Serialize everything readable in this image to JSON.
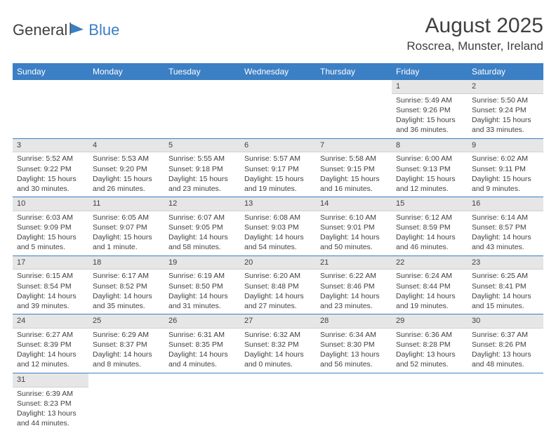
{
  "logo": {
    "text1": "General",
    "text2": "Blue"
  },
  "title": "August 2025",
  "location": "Roscrea, Munster, Ireland",
  "colors": {
    "header_bg": "#3b7fc4",
    "header_text": "#ffffff",
    "daynum_bg": "#e6e6e6",
    "row_border": "#3b7fc4",
    "body_text": "#404040",
    "logo_blue": "#3b7fc4"
  },
  "day_labels": [
    "Sunday",
    "Monday",
    "Tuesday",
    "Wednesday",
    "Thursday",
    "Friday",
    "Saturday"
  ],
  "weeks": [
    [
      null,
      null,
      null,
      null,
      null,
      {
        "d": "1",
        "sr": "5:49 AM",
        "ss": "9:26 PM",
        "dl": "15 hours and 36 minutes."
      },
      {
        "d": "2",
        "sr": "5:50 AM",
        "ss": "9:24 PM",
        "dl": "15 hours and 33 minutes."
      }
    ],
    [
      {
        "d": "3",
        "sr": "5:52 AM",
        "ss": "9:22 PM",
        "dl": "15 hours and 30 minutes."
      },
      {
        "d": "4",
        "sr": "5:53 AM",
        "ss": "9:20 PM",
        "dl": "15 hours and 26 minutes."
      },
      {
        "d": "5",
        "sr": "5:55 AM",
        "ss": "9:18 PM",
        "dl": "15 hours and 23 minutes."
      },
      {
        "d": "6",
        "sr": "5:57 AM",
        "ss": "9:17 PM",
        "dl": "15 hours and 19 minutes."
      },
      {
        "d": "7",
        "sr": "5:58 AM",
        "ss": "9:15 PM",
        "dl": "15 hours and 16 minutes."
      },
      {
        "d": "8",
        "sr": "6:00 AM",
        "ss": "9:13 PM",
        "dl": "15 hours and 12 minutes."
      },
      {
        "d": "9",
        "sr": "6:02 AM",
        "ss": "9:11 PM",
        "dl": "15 hours and 9 minutes."
      }
    ],
    [
      {
        "d": "10",
        "sr": "6:03 AM",
        "ss": "9:09 PM",
        "dl": "15 hours and 5 minutes."
      },
      {
        "d": "11",
        "sr": "6:05 AM",
        "ss": "9:07 PM",
        "dl": "15 hours and 1 minute."
      },
      {
        "d": "12",
        "sr": "6:07 AM",
        "ss": "9:05 PM",
        "dl": "14 hours and 58 minutes."
      },
      {
        "d": "13",
        "sr": "6:08 AM",
        "ss": "9:03 PM",
        "dl": "14 hours and 54 minutes."
      },
      {
        "d": "14",
        "sr": "6:10 AM",
        "ss": "9:01 PM",
        "dl": "14 hours and 50 minutes."
      },
      {
        "d": "15",
        "sr": "6:12 AM",
        "ss": "8:59 PM",
        "dl": "14 hours and 46 minutes."
      },
      {
        "d": "16",
        "sr": "6:14 AM",
        "ss": "8:57 PM",
        "dl": "14 hours and 43 minutes."
      }
    ],
    [
      {
        "d": "17",
        "sr": "6:15 AM",
        "ss": "8:54 PM",
        "dl": "14 hours and 39 minutes."
      },
      {
        "d": "18",
        "sr": "6:17 AM",
        "ss": "8:52 PM",
        "dl": "14 hours and 35 minutes."
      },
      {
        "d": "19",
        "sr": "6:19 AM",
        "ss": "8:50 PM",
        "dl": "14 hours and 31 minutes."
      },
      {
        "d": "20",
        "sr": "6:20 AM",
        "ss": "8:48 PM",
        "dl": "14 hours and 27 minutes."
      },
      {
        "d": "21",
        "sr": "6:22 AM",
        "ss": "8:46 PM",
        "dl": "14 hours and 23 minutes."
      },
      {
        "d": "22",
        "sr": "6:24 AM",
        "ss": "8:44 PM",
        "dl": "14 hours and 19 minutes."
      },
      {
        "d": "23",
        "sr": "6:25 AM",
        "ss": "8:41 PM",
        "dl": "14 hours and 15 minutes."
      }
    ],
    [
      {
        "d": "24",
        "sr": "6:27 AM",
        "ss": "8:39 PM",
        "dl": "14 hours and 12 minutes."
      },
      {
        "d": "25",
        "sr": "6:29 AM",
        "ss": "8:37 PM",
        "dl": "14 hours and 8 minutes."
      },
      {
        "d": "26",
        "sr": "6:31 AM",
        "ss": "8:35 PM",
        "dl": "14 hours and 4 minutes."
      },
      {
        "d": "27",
        "sr": "6:32 AM",
        "ss": "8:32 PM",
        "dl": "14 hours and 0 minutes."
      },
      {
        "d": "28",
        "sr": "6:34 AM",
        "ss": "8:30 PM",
        "dl": "13 hours and 56 minutes."
      },
      {
        "d": "29",
        "sr": "6:36 AM",
        "ss": "8:28 PM",
        "dl": "13 hours and 52 minutes."
      },
      {
        "d": "30",
        "sr": "6:37 AM",
        "ss": "8:26 PM",
        "dl": "13 hours and 48 minutes."
      }
    ],
    [
      {
        "d": "31",
        "sr": "6:39 AM",
        "ss": "8:23 PM",
        "dl": "13 hours and 44 minutes."
      },
      null,
      null,
      null,
      null,
      null,
      null
    ]
  ],
  "labels": {
    "sunrise": "Sunrise: ",
    "sunset": "Sunset: ",
    "daylight": "Daylight: "
  }
}
